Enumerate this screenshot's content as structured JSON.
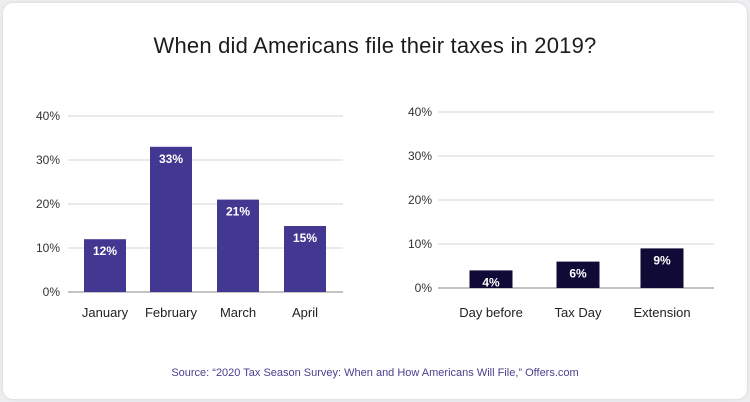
{
  "title": "When did Americans file their taxes in 2019?",
  "source": "Source: “2020 Tax Season Survey: When and How Americans Will File,” Offers.com",
  "colors": {
    "left_bars": "#433891",
    "right_bars": "#0f0a36",
    "grid": "#d6d6d6",
    "axis": "#888888"
  },
  "chart_data": [
    {
      "type": "bar",
      "categories": [
        "January",
        "February",
        "March",
        "April"
      ],
      "values": [
        12,
        33,
        21,
        15
      ],
      "data_labels": [
        "12%",
        "33%",
        "21%",
        "15%"
      ],
      "yticks": [
        "0%",
        "10%",
        "20%",
        "30%",
        "40%"
      ],
      "ylim": [
        0,
        40
      ],
      "grid": true
    },
    {
      "type": "bar",
      "categories": [
        "Day before",
        "Tax Day",
        "Extension"
      ],
      "values": [
        4,
        6,
        9
      ],
      "data_labels": [
        "4%",
        "6%",
        "9%"
      ],
      "yticks": [
        "0%",
        "10%",
        "20%",
        "30%",
        "40%"
      ],
      "ylim": [
        0,
        40
      ],
      "grid": true
    }
  ]
}
